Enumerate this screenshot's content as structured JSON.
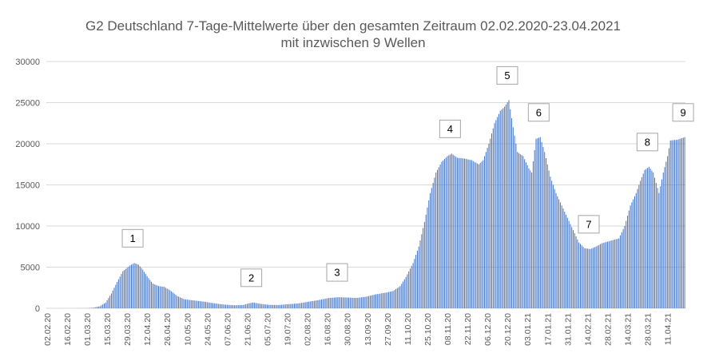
{
  "chart_data": {
    "type": "bar",
    "title": "G2 Deutschland 7-Tage-Mittelwerte über den gesamten Zeitraum 02.02.2020-23.04.2021",
    "subtitle": "mit inzwischen 9 Wellen",
    "xlabel": "",
    "ylabel": "",
    "ylim": [
      0,
      30000
    ],
    "yticks": [
      "0",
      "5000",
      "10000",
      "15000",
      "20000",
      "25000",
      "30000"
    ],
    "yticks_values": [
      0,
      5000,
      10000,
      15000,
      20000,
      25000,
      30000
    ],
    "grid": true,
    "legend": "none",
    "bar_color": "#4472c4",
    "x_start": "2020-02-02",
    "x_end": "2021-04-23",
    "x_ticks": [
      "02.02.20",
      "16.02.20",
      "01.03.20",
      "15.03.20",
      "29.03.20",
      "12.04.20",
      "26.04.20",
      "10.05.20",
      "24.05.20",
      "07.06.20",
      "21.06.20",
      "05.07.20",
      "19.07.20",
      "02.08.20",
      "16.08.20",
      "30.08.20",
      "13.09.20",
      "27.09.20",
      "11.10.20",
      "25.10.20",
      "08.11.20",
      "22.11.20",
      "06.12.20",
      "20.12.20",
      "03.01.21",
      "17.01.21",
      "31.01.21",
      "14.02.21",
      "28.02.21",
      "14.03.21",
      "28.03.21",
      "11.04.21"
    ],
    "points": [
      [
        "2020-02-02",
        0
      ],
      [
        "2020-02-29",
        10
      ],
      [
        "2020-03-05",
        60
      ],
      [
        "2020-03-10",
        250
      ],
      [
        "2020-03-14",
        700
      ],
      [
        "2020-03-18",
        1800
      ],
      [
        "2020-03-22",
        3200
      ],
      [
        "2020-03-26",
        4500
      ],
      [
        "2020-03-31",
        5200
      ],
      [
        "2020-04-03",
        5500
      ],
      [
        "2020-04-06",
        5300
      ],
      [
        "2020-04-09",
        4700
      ],
      [
        "2020-04-12",
        3900
      ],
      [
        "2020-04-16",
        3000
      ],
      [
        "2020-04-20",
        2700
      ],
      [
        "2020-04-24",
        2600
      ],
      [
        "2020-04-28",
        2200
      ],
      [
        "2020-05-03",
        1500
      ],
      [
        "2020-05-08",
        1100
      ],
      [
        "2020-05-15",
        950
      ],
      [
        "2020-05-22",
        800
      ],
      [
        "2020-05-29",
        600
      ],
      [
        "2020-06-05",
        450
      ],
      [
        "2020-06-12",
        370
      ],
      [
        "2020-06-18",
        400
      ],
      [
        "2020-06-22",
        600
      ],
      [
        "2020-06-25",
        700
      ],
      [
        "2020-06-30",
        550
      ],
      [
        "2020-07-06",
        420
      ],
      [
        "2020-07-13",
        400
      ],
      [
        "2020-07-20",
        500
      ],
      [
        "2020-07-27",
        600
      ],
      [
        "2020-08-03",
        800
      ],
      [
        "2020-08-10",
        1000
      ],
      [
        "2020-08-17",
        1250
      ],
      [
        "2020-08-24",
        1350
      ],
      [
        "2020-08-31",
        1300
      ],
      [
        "2020-09-05",
        1250
      ],
      [
        "2020-09-12",
        1400
      ],
      [
        "2020-09-19",
        1700
      ],
      [
        "2020-09-26",
        1900
      ],
      [
        "2020-10-01",
        2100
      ],
      [
        "2020-10-06",
        2700
      ],
      [
        "2020-10-10",
        3800
      ],
      [
        "2020-10-15",
        5500
      ],
      [
        "2020-10-19",
        7500
      ],
      [
        "2020-10-23",
        10500
      ],
      [
        "2020-10-27",
        14000
      ],
      [
        "2020-10-31",
        16500
      ],
      [
        "2020-11-04",
        17800
      ],
      [
        "2020-11-08",
        18500
      ],
      [
        "2020-11-11",
        18800
      ],
      [
        "2020-11-15",
        18300
      ],
      [
        "2020-11-20",
        18200
      ],
      [
        "2020-11-25",
        18000
      ],
      [
        "2020-11-30",
        17500
      ],
      [
        "2020-12-03",
        18000
      ],
      [
        "2020-12-07",
        20000
      ],
      [
        "2020-12-11",
        22500
      ],
      [
        "2020-12-15",
        24000
      ],
      [
        "2020-12-18",
        24500
      ],
      [
        "2020-12-21",
        25300
      ],
      [
        "2020-12-24",
        22000
      ],
      [
        "2020-12-27",
        19000
      ],
      [
        "2020-12-31",
        18500
      ],
      [
        "2021-01-04",
        17000
      ],
      [
        "2021-01-06",
        16500
      ],
      [
        "2021-01-09",
        20600
      ],
      [
        "2021-01-12",
        20800
      ],
      [
        "2021-01-15",
        19000
      ],
      [
        "2021-01-19",
        16000
      ],
      [
        "2021-01-23",
        14000
      ],
      [
        "2021-01-27",
        12500
      ],
      [
        "2021-01-31",
        11000
      ],
      [
        "2021-02-04",
        9500
      ],
      [
        "2021-02-08",
        8000
      ],
      [
        "2021-02-12",
        7300
      ],
      [
        "2021-02-16",
        7200
      ],
      [
        "2021-02-20",
        7500
      ],
      [
        "2021-02-24",
        7900
      ],
      [
        "2021-02-28",
        8100
      ],
      [
        "2021-03-04",
        8300
      ],
      [
        "2021-03-08",
        8500
      ],
      [
        "2021-03-12",
        10000
      ],
      [
        "2021-03-16",
        12500
      ],
      [
        "2021-03-20",
        14000
      ],
      [
        "2021-03-23",
        15500
      ],
      [
        "2021-03-26",
        16800
      ],
      [
        "2021-03-29",
        17200
      ],
      [
        "2021-04-01",
        16500
      ],
      [
        "2021-04-05",
        14000
      ],
      [
        "2021-04-08",
        16500
      ],
      [
        "2021-04-11",
        18500
      ],
      [
        "2021-04-13",
        20400
      ],
      [
        "2021-04-18",
        20500
      ],
      [
        "2021-04-23",
        20800
      ]
    ],
    "annotations": [
      {
        "label": "1",
        "date": "2020-04-03"
      },
      {
        "label": "2",
        "date": "2020-06-25"
      },
      {
        "label": "3",
        "date": "2020-08-24"
      },
      {
        "label": "4",
        "date": "2020-11-11"
      },
      {
        "label": "5",
        "date": "2020-12-21"
      },
      {
        "label": "6",
        "date": "2021-01-12"
      },
      {
        "label": "7",
        "date": "2021-02-16"
      },
      {
        "label": "8",
        "date": "2021-03-29"
      },
      {
        "label": "9",
        "date": "2021-04-23"
      }
    ]
  }
}
